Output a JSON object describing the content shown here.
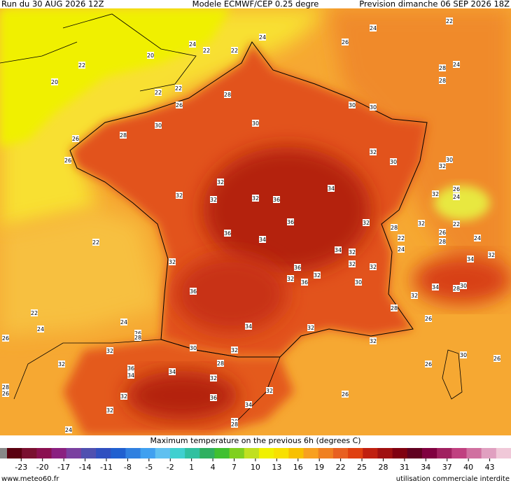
{
  "header": {
    "run": "Run du 30 AUG 2026 12Z",
    "model": "Modele ECMWF/CEP 0.25 degre",
    "forecast": "Prevision dimanche 06 SEP 2026 18Z"
  },
  "map": {
    "contour_labels": [
      22,
      24,
      24,
      26,
      24,
      22,
      22,
      20,
      22,
      20,
      28,
      24,
      28,
      22,
      22,
      28,
      26,
      30,
      30,
      30,
      30,
      28,
      26,
      26,
      32,
      30,
      32,
      30,
      32,
      34,
      32,
      32,
      32,
      36,
      26,
      32,
      24,
      36,
      32,
      28,
      32,
      22,
      36,
      34,
      22,
      26,
      28,
      24,
      22,
      24,
      34,
      32,
      32,
      32,
      34,
      36,
      32,
      32,
      32,
      36,
      32,
      30,
      34,
      28,
      30,
      36,
      32,
      28,
      22,
      26,
      24,
      34,
      32,
      24,
      26,
      26,
      28,
      32,
      30,
      32,
      32,
      30,
      26,
      28,
      32,
      26,
      36,
      34,
      34,
      32,
      28,
      26,
      32,
      32,
      36,
      26,
      34,
      32,
      30,
      28,
      24
    ]
  },
  "legend": {
    "title": "Maximum temperature on the previous 6h (degrees C)",
    "range": [
      -25,
      46
    ],
    "colors": [
      "#5a0010",
      "#7a1030",
      "#8a1050",
      "#8a2080",
      "#7a40a0",
      "#5050b0",
      "#3050c0",
      "#2060d0",
      "#3080e0",
      "#40a0f0",
      "#60c0f0",
      "#40d0d0",
      "#30c0a0",
      "#30b060",
      "#40c030",
      "#80d020",
      "#c0e020",
      "#f0f000",
      "#f8e000",
      "#f8c000",
      "#f8a020",
      "#f08020",
      "#e86020",
      "#e04010",
      "#c02010",
      "#a01010",
      "#800010",
      "#600020",
      "#800040",
      "#a02060",
      "#c04080",
      "#d070a0",
      "#e0a0c0",
      "#f0c8d8"
    ],
    "ticks": [
      -23,
      -20,
      -17,
      -14,
      -11,
      -8,
      -5,
      -2,
      1,
      4,
      7,
      10,
      13,
      16,
      19,
      22,
      25,
      28,
      31,
      34,
      37,
      40,
      43
    ]
  },
  "footer": {
    "site": "www.meteo60.fr",
    "notice": "utilisation commerciale interdite"
  }
}
